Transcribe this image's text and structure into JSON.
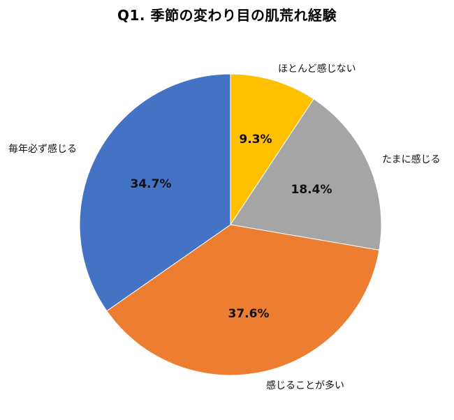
{
  "title": "Q1. 季節の変わり目の肌荒れ経験",
  "chart_data": {
    "type": "pie",
    "title": "Q1. 季節の変わり目の肌荒れ経験",
    "start_angle_deg": 0,
    "direction": "clockwise",
    "slices": [
      {
        "label": "ほとんど感じない",
        "value": 9.3,
        "display": "9.3%",
        "color": "#FFC000"
      },
      {
        "label": "たまに感じる",
        "value": 18.4,
        "display": "18.4%",
        "color": "#A5A5A5"
      },
      {
        "label": "感じることが多い",
        "value": 37.6,
        "display": "37.6%",
        "color": "#ED7D31"
      },
      {
        "label": "毎年必ず感じる",
        "value": 34.7,
        "display": "34.7%",
        "color": "#4472C4"
      }
    ],
    "legend": "none (category labels placed outside slices)"
  }
}
